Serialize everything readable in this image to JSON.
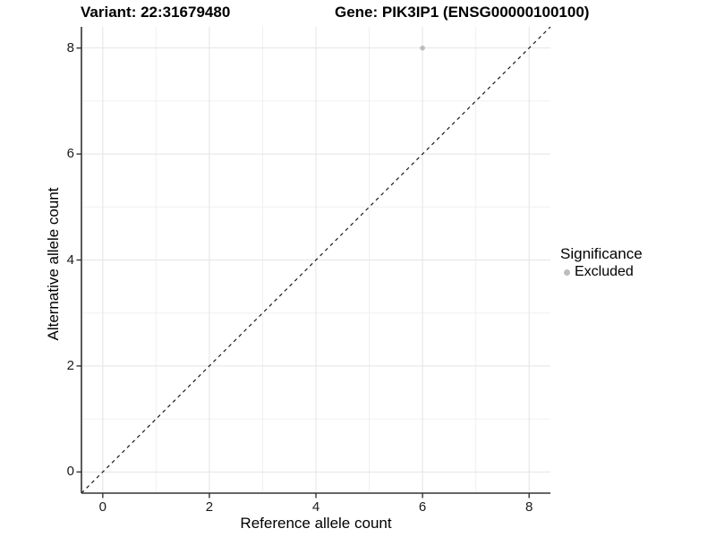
{
  "titles": {
    "variant": "Variant: 22:31679480",
    "gene": "Gene: PIK3IP1 (ENSG00000100100)"
  },
  "chart_data": {
    "type": "scatter",
    "title_left": "Variant: 22:31679480",
    "title_right": "Gene: PIK3IP1 (ENSG00000100100)",
    "xlabel": "Reference allele count",
    "ylabel": "Alternative allele count",
    "xlim": [
      -0.4,
      8.4
    ],
    "ylim": [
      -0.4,
      8.4
    ],
    "x_ticks": [
      0,
      2,
      4,
      6,
      8
    ],
    "y_ticks": [
      0,
      2,
      4,
      6,
      8
    ],
    "x_minor_ticks": [
      1,
      3,
      5,
      7
    ],
    "y_minor_ticks": [
      1,
      3,
      5,
      7
    ],
    "grid": true,
    "series": [
      {
        "name": "Excluded",
        "points": [
          {
            "x": 6,
            "y": 8
          }
        ]
      }
    ],
    "reference_line": {
      "kind": "identity y=x",
      "style": "dashed",
      "from": -0.4,
      "to": 8.4
    },
    "legend": {
      "title": "Significance",
      "position": "right",
      "entries": [
        {
          "label": "Excluded"
        }
      ]
    }
  },
  "colors": {
    "background": "#ffffff",
    "point_excluded": "#bdbdbd",
    "grid_major": "#e4e4e4",
    "grid_minor": "#f0f0f0",
    "axis_line": "#333333",
    "tick_mark": "#333333",
    "dashed_line": "#1a1a1a",
    "text": "#000000"
  }
}
